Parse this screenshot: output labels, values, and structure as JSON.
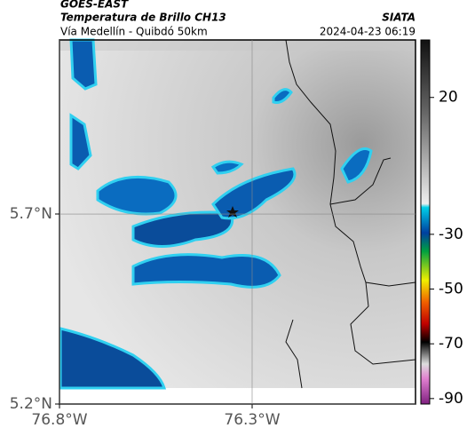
{
  "header": {
    "source": "GOES-EAST",
    "product": "Temperatura de Brillo CH13",
    "region": "Vía Medellín - Quibdó 50km",
    "agency": "SIATA",
    "timestamp": "2024-04-23 06:19"
  },
  "map": {
    "xlim": [
      -76.8,
      -75.876
    ],
    "ylim": [
      5.2,
      6.158
    ],
    "xticks": [
      {
        "value": -76.8,
        "label": "76.8°W"
      },
      {
        "value": -76.3,
        "label": "76.3°W"
      }
    ],
    "yticks": [
      {
        "value": 5.2,
        "label": "5.2°N"
      },
      {
        "value": 5.7,
        "label": "5.7°N"
      }
    ],
    "grid": true
  },
  "colorbar": {
    "lim": [
      -92,
      41
    ],
    "ticks": [
      20,
      -30,
      -50,
      -70,
      -90
    ]
  }
}
